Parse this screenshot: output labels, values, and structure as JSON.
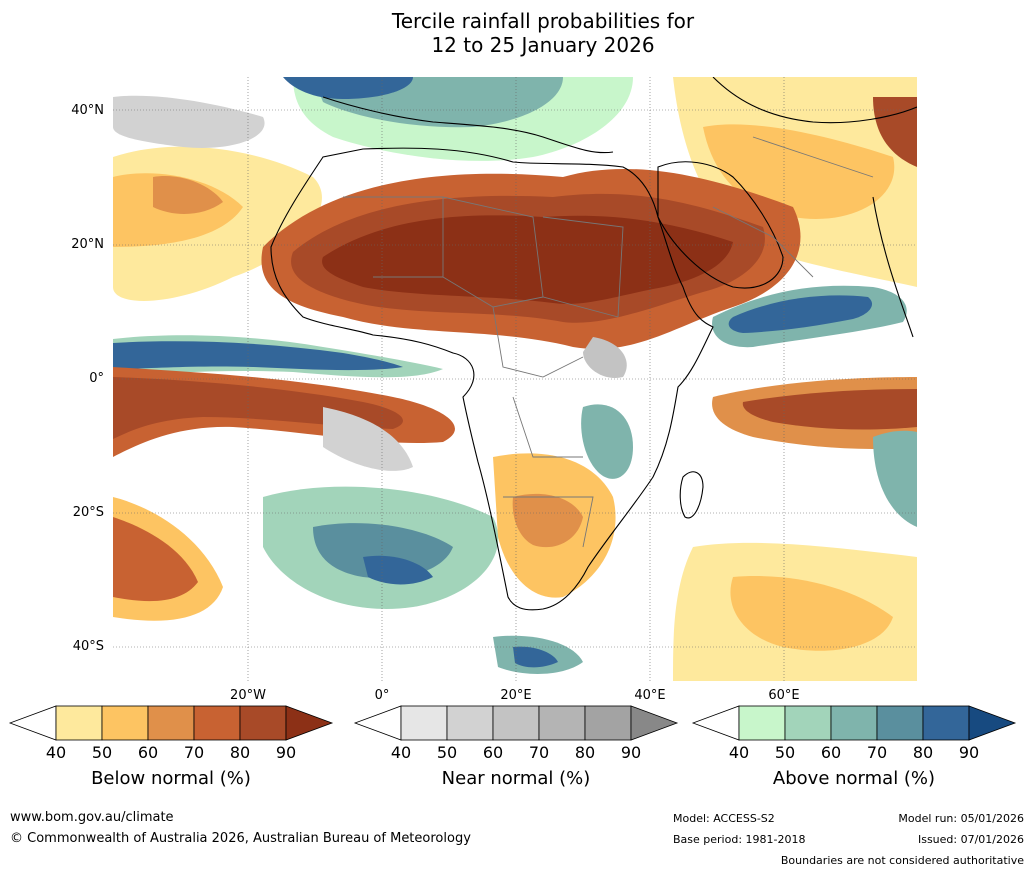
{
  "title": {
    "line1": "Tercile rainfall probabilities for",
    "line2": "12 to 25 January 2026"
  },
  "map": {
    "lat_labels": [
      "40°N",
      "20°N",
      "0°",
      "20°S",
      "40°S"
    ],
    "lon_labels": [
      "20°W",
      "0°",
      "20°E",
      "40°E",
      "60°E"
    ]
  },
  "colorbars": [
    {
      "title": "Below normal (%)",
      "ticks": [
        "40",
        "50",
        "60",
        "70",
        "80",
        "90"
      ],
      "colors": [
        "#ffffff",
        "#fee99d",
        "#fdc462",
        "#e0904a",
        "#c86232",
        "#a84a28",
        "#8c3016"
      ]
    },
    {
      "title": "Near normal (%)",
      "ticks": [
        "40",
        "50",
        "60",
        "70",
        "80",
        "90"
      ],
      "colors": [
        "#ffffff",
        "#e6e6e6",
        "#d2d2d2",
        "#c3c3c3",
        "#b4b4b4",
        "#a3a3a3",
        "#888888"
      ]
    },
    {
      "title": "Above normal (%)",
      "ticks": [
        "40",
        "50",
        "60",
        "70",
        "80",
        "90"
      ],
      "colors": [
        "#ffffff",
        "#c8f6cb",
        "#a2d4ba",
        "#7fb4ac",
        "#5a8f9e",
        "#336699",
        "#174a80"
      ]
    }
  ],
  "footer": {
    "website": "www.bom.gov.au/climate",
    "copyright": "© Commonwealth of Australia 2026, Australian Bureau of Meteorology",
    "model": "Model: ACCESS-S2",
    "base_period": "Base period: 1981-2018",
    "model_run": "Model run: 05/01/2026",
    "issued": "Issued: 07/01/2026",
    "disclaimer": "Boundaries are not considered authoritative"
  }
}
